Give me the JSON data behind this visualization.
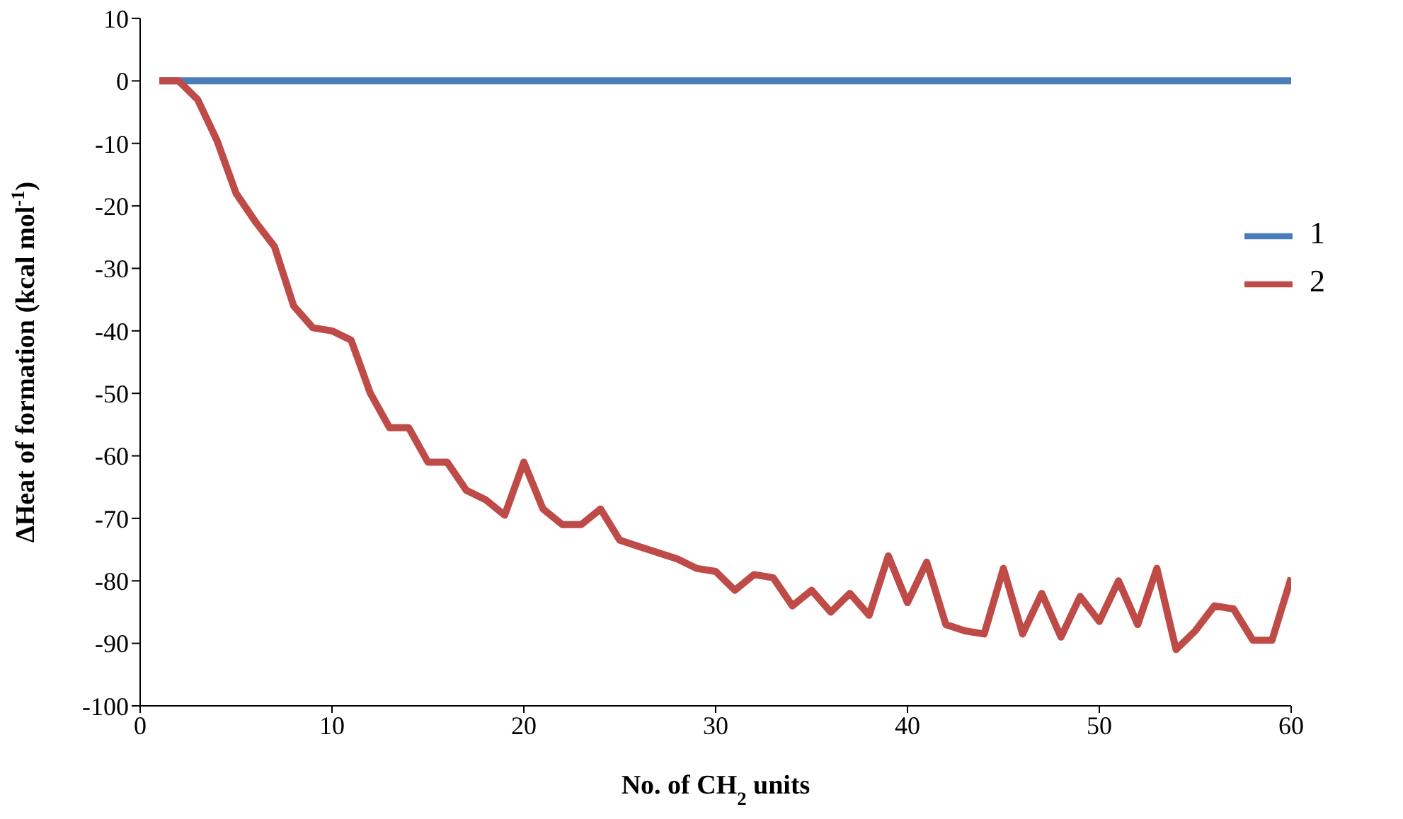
{
  "chart_data": {
    "type": "line",
    "xlabel": "No. of CH$_{2}$ units",
    "ylabel": "ΔHeat of formation (kcal mol$^{-1}$)",
    "xlim": [
      0,
      60
    ],
    "xticks": [
      0,
      10,
      20,
      30,
      40,
      50,
      60
    ],
    "ylim": [
      -100,
      10
    ],
    "yticks": [
      -100,
      -90,
      -80,
      -70,
      -60,
      -50,
      -40,
      -30,
      -20,
      -10,
      0,
      10
    ],
    "grid": false,
    "legend": "right",
    "marker": "none",
    "line_style": "solid",
    "series": [
      {
        "name": "1",
        "color": "#4a7ebb",
        "x": [
          1,
          60
        ],
        "values": [
          0,
          0
        ]
      },
      {
        "name": "2",
        "color": "#be4b48",
        "x": [
          1,
          2,
          3,
          4,
          5,
          6,
          7,
          8,
          9,
          10,
          11,
          12,
          13,
          14,
          15,
          16,
          17,
          18,
          19,
          20,
          21,
          22,
          23,
          24,
          25,
          26,
          27,
          28,
          29,
          30,
          31,
          32,
          33,
          34,
          35,
          36,
          37,
          38,
          39,
          40,
          41,
          42,
          43,
          44,
          45,
          46,
          47,
          48,
          49,
          50,
          51,
          52,
          53,
          54,
          55,
          56,
          57,
          58,
          59,
          60
        ],
        "values": [
          0,
          0,
          -3,
          -9.5,
          -18,
          -22.5,
          -26.5,
          -36,
          -39.5,
          -40,
          -41.5,
          -50,
          -55.5,
          -55.5,
          -61,
          -61,
          -65.5,
          -67,
          -69.5,
          -61,
          -68.5,
          -71,
          -71,
          -68.5,
          -73.5,
          -74.5,
          -75.5,
          -76.5,
          -78,
          -78.5,
          -81.5,
          -79,
          -79.5,
          -84,
          -81.5,
          -85,
          -82,
          -85.5,
          -76,
          -83.5,
          -77,
          -87,
          -88,
          -88.5,
          -78,
          -88.5,
          -82,
          -89,
          -82.5,
          -86.5,
          -80,
          -87,
          -78,
          -91,
          -88,
          -84,
          -84.5,
          -89.5,
          -89.5,
          -79.5
        ]
      }
    ]
  }
}
